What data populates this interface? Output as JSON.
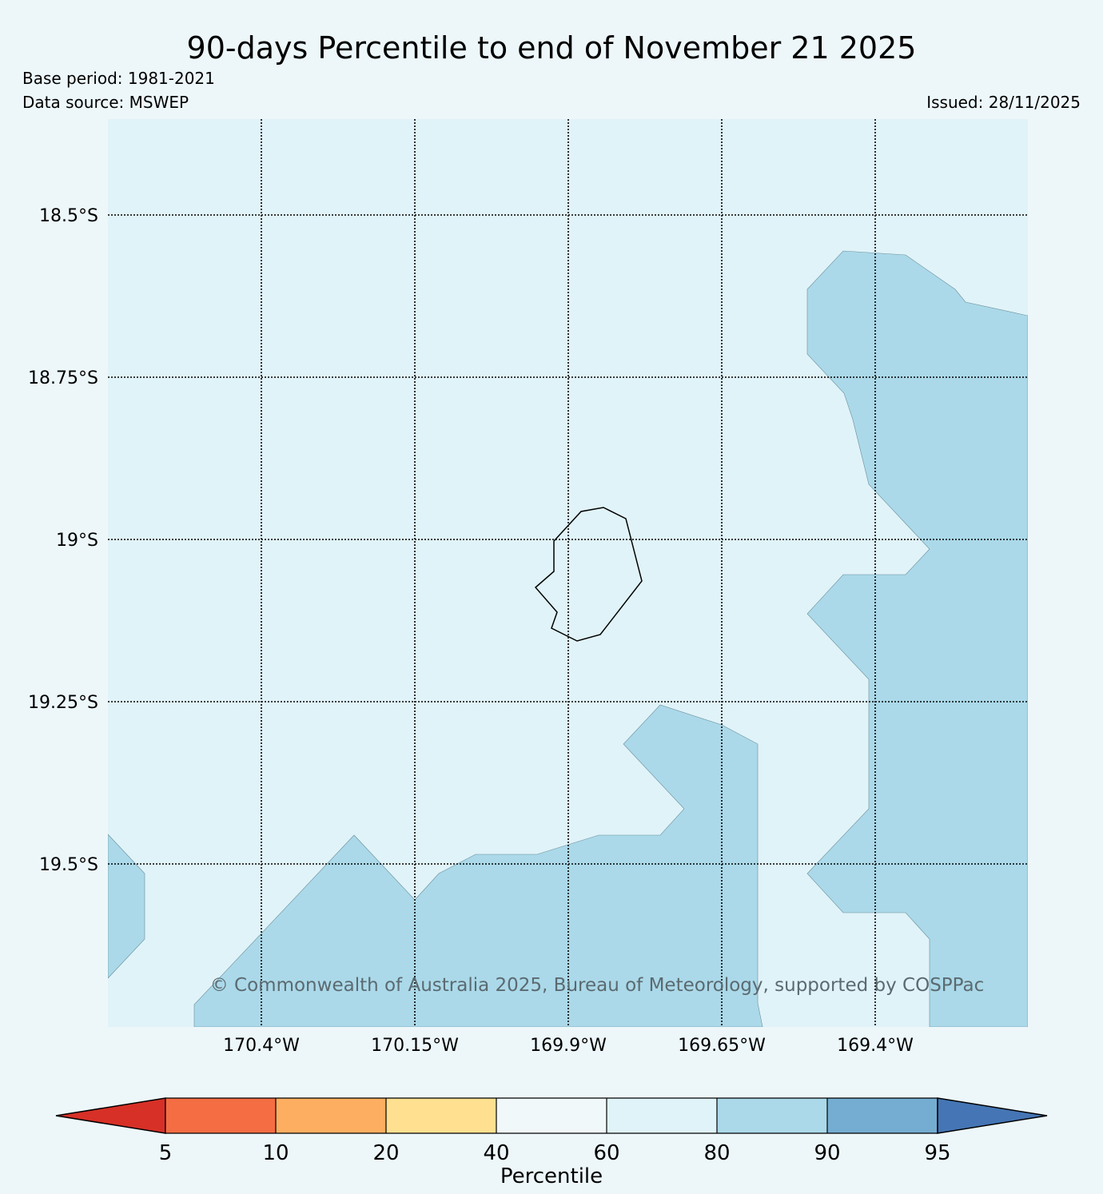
{
  "title": "90-days Percentile to end of November 21 2025",
  "base_period": "Base period: 1981-2021",
  "data_source": "Data source: MSWEP",
  "issued": "Issued: 28/11/2025",
  "copyright": "© Commonwealth of Australia 2025, Bureau of Meteorology, supported by COSPPac",
  "latitude_labels": [
    "18.5°S",
    "18.75°S",
    "19°S",
    "19.25°S",
    "19.5°S"
  ],
  "longitude_labels": [
    "170.4°W",
    "170.15°W",
    "169.9°W",
    "169.65°W",
    "169.4°W"
  ],
  "colorbar": {
    "label": "Percentile",
    "ticks": [
      "5",
      "10",
      "20",
      "40",
      "60",
      "80",
      "90",
      "95"
    ],
    "colors": [
      "#d73027",
      "#f46d43",
      "#fdae61",
      "#fee090",
      "#f0f8fa",
      "#e0f3f8",
      "#abd9e9",
      "#74add1",
      "#4575b4"
    ]
  },
  "map_colors": {
    "background_class": "#e0f3f8",
    "high_class": "#abd9e9"
  }
}
